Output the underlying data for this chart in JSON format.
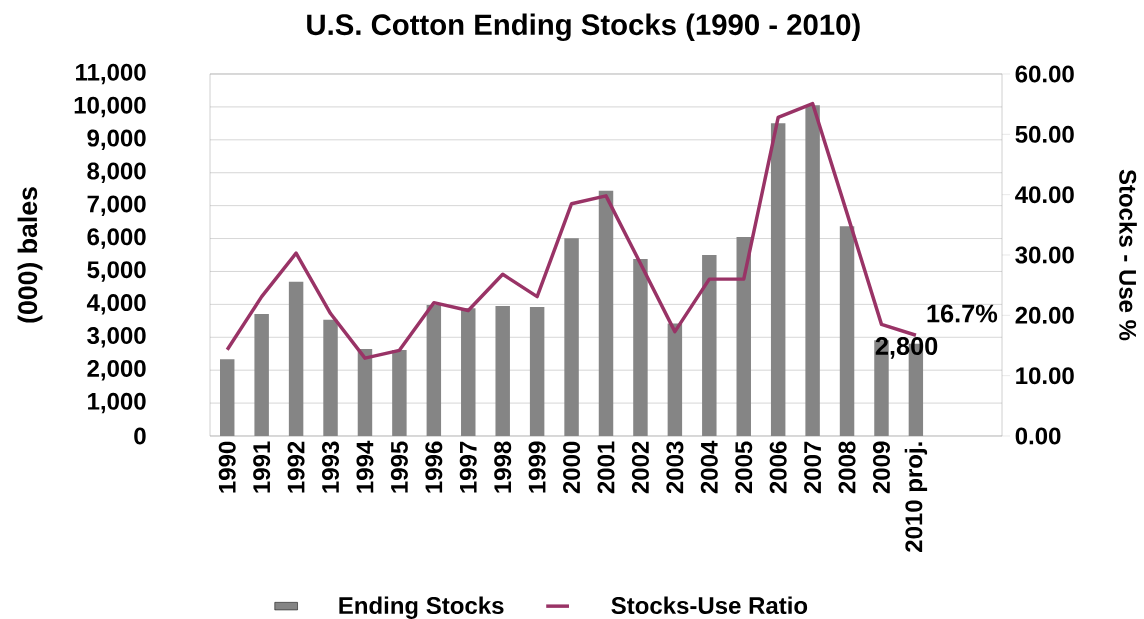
{
  "chart_data": {
    "type": "bar",
    "title": "U.S. Cotton Ending Stocks (1990 - 2010)",
    "ylabel": "(000) bales",
    "y2label": "Stocks - Use %",
    "categories": [
      "1990",
      "1991",
      "1992",
      "1993",
      "1994",
      "1995",
      "1996",
      "1997",
      "1998",
      "1999",
      "2000",
      "2001",
      "2002",
      "2003",
      "2004",
      "2005",
      "2006",
      "2007",
      "2008",
      "2009",
      "2010 proj."
    ],
    "series": [
      {
        "name": "Ending Stocks",
        "type": "bar",
        "color": "#858585",
        "values": [
          2330,
          3710,
          4690,
          3530,
          2640,
          2610,
          3980,
          3880,
          3950,
          3920,
          6010,
          7450,
          5380,
          3420,
          5500,
          6050,
          9500,
          10050,
          6370,
          2910,
          2800
        ],
        "value_labels": [
          null,
          null,
          null,
          null,
          null,
          null,
          null,
          null,
          null,
          null,
          null,
          null,
          null,
          null,
          null,
          null,
          null,
          null,
          null,
          null,
          "2,800"
        ]
      },
      {
        "name": "Stocks-Use Ratio",
        "type": "line",
        "axis": "y2",
        "color": "#993366",
        "values": [
          14.3,
          23.1,
          30.3,
          20.3,
          12.9,
          14.2,
          22.1,
          20.8,
          26.8,
          23.1,
          38.5,
          39.8,
          28.6,
          17.3,
          26.0,
          26.0,
          52.8,
          55.1,
          36.9,
          18.5,
          16.7
        ],
        "value_labels": [
          null,
          null,
          null,
          null,
          null,
          null,
          null,
          null,
          null,
          null,
          null,
          null,
          null,
          null,
          null,
          null,
          null,
          null,
          null,
          null,
          "16.7%"
        ]
      }
    ],
    "ylim": [
      0,
      11000
    ],
    "yticks": [
      0,
      {
        "value": 1000,
        "label": "1,000"
      },
      {
        "value": 2000,
        "label": "2,000"
      },
      {
        "value": 3000,
        "label": "3,000"
      },
      {
        "value": 4000,
        "label": "4,000"
      },
      {
        "value": 5000,
        "label": "5,000"
      },
      {
        "value": 6000,
        "label": "6,000"
      },
      {
        "value": 7000,
        "label": "7,000"
      },
      {
        "value": 8000,
        "label": "8,000"
      },
      {
        "value": 9000,
        "label": "9,000"
      },
      {
        "value": 10000,
        "label": "10,000"
      },
      {
        "value": 11000,
        "label": "11,000"
      }
    ],
    "y2lim": [
      0,
      60
    ],
    "y2ticks": [
      {
        "value": 0,
        "label": "0.00"
      },
      {
        "value": 10,
        "label": "10.00"
      },
      {
        "value": 20,
        "label": "20.00"
      },
      {
        "value": 30,
        "label": "30.00"
      },
      {
        "value": 40,
        "label": "40.00"
      },
      {
        "value": 50,
        "label": "50.00"
      },
      {
        "value": 60,
        "label": "60.00"
      }
    ],
    "grid": "y",
    "legend": "bottom"
  }
}
